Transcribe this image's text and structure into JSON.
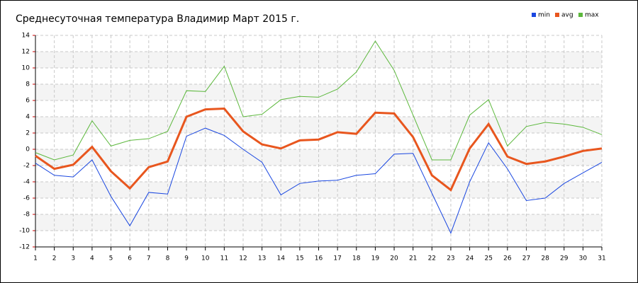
{
  "chart_data": {
    "type": "line",
    "title": "Среднесуточная температура Владимир  Март 2015 г.",
    "x": [
      1,
      2,
      3,
      4,
      5,
      6,
      7,
      8,
      9,
      10,
      11,
      12,
      13,
      14,
      15,
      16,
      17,
      18,
      19,
      20,
      21,
      22,
      23,
      24,
      25,
      26,
      27,
      28,
      29,
      30,
      31
    ],
    "xlim": [
      1,
      31
    ],
    "xticks": [
      1,
      2,
      3,
      4,
      5,
      6,
      7,
      8,
      9,
      10,
      11,
      12,
      13,
      14,
      15,
      16,
      17,
      18,
      19,
      20,
      21,
      22,
      23,
      24,
      25,
      26,
      27,
      28,
      29,
      30,
      31
    ],
    "ylim": [
      -12,
      14
    ],
    "yticks": [
      -12,
      -10,
      -8,
      -6,
      -4,
      -2,
      0,
      2,
      4,
      6,
      8,
      10,
      12,
      14
    ],
    "grid": true,
    "legend": "top-right",
    "series": [
      {
        "name": "min",
        "color": "#1a47e0",
        "values": [
          -1.7,
          -3.2,
          -3.4,
          -1.3,
          -5.8,
          -9.4,
          -5.3,
          -5.5,
          1.6,
          2.6,
          1.7,
          0,
          -1.6,
          -5.6,
          -4.2,
          -3.9,
          -3.8,
          -3.2,
          -3.0,
          -0.6,
          -0.5,
          -5.4,
          -10.3,
          -4.0,
          0.8,
          -2.4,
          -6.3,
          -6.0,
          -4.2,
          -2.9,
          -1.6
        ]
      },
      {
        "name": "avg",
        "color": "#e8561e",
        "values": [
          -0.8,
          -2.4,
          -1.9,
          0.3,
          -2.7,
          -4.8,
          -2.2,
          -1.5,
          4.0,
          4.9,
          5.0,
          2.2,
          0.6,
          0.1,
          1.1,
          1.2,
          2.1,
          1.9,
          4.5,
          4.4,
          1.5,
          -3.2,
          -5.0,
          0.1,
          3.1,
          -0.9,
          -1.8,
          -1.5,
          -0.9,
          -0.2,
          0.1
        ]
      },
      {
        "name": "max",
        "color": "#5cb83c",
        "values": [
          -0.4,
          -1.3,
          -0.7,
          3.5,
          0.4,
          1.1,
          1.3,
          2.2,
          7.2,
          7.1,
          10.2,
          4.0,
          4.3,
          6.1,
          6.5,
          6.4,
          7.4,
          9.5,
          13.3,
          9.7,
          4.2,
          -1.3,
          -1.3,
          4.2,
          6.1,
          0.4,
          2.8,
          3.3,
          3.1,
          2.7,
          1.8
        ]
      }
    ]
  }
}
